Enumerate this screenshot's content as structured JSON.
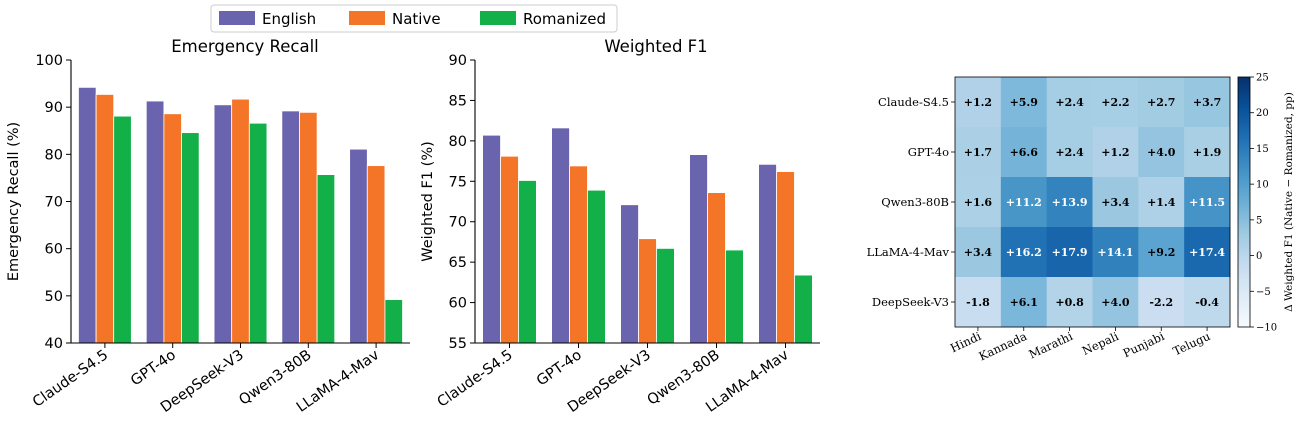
{
  "legend": [
    {
      "label": "English",
      "color": "#6a63ad"
    },
    {
      "label": "Native",
      "color": "#f47528"
    },
    {
      "label": "Romanized",
      "color": "#13b04a"
    }
  ],
  "chart_data": [
    {
      "type": "bar",
      "title": "Emergency Recall",
      "ylabel": "Emergency Recall (%)",
      "ylim": [
        40,
        100
      ],
      "yticks": [
        40,
        50,
        60,
        70,
        80,
        90,
        100
      ],
      "categories": [
        "Claude-S4.5",
        "GPT-4o",
        "DeepSeek-V3",
        "Qwen3-80B",
        "LLaMA-4-Mav"
      ],
      "series": [
        {
          "name": "English",
          "values": [
            94.2,
            91.3,
            90.5,
            89.2,
            81.1
          ]
        },
        {
          "name": "Native",
          "values": [
            92.7,
            88.6,
            91.7,
            88.9,
            77.6
          ]
        },
        {
          "name": "Romanized",
          "values": [
            88.1,
            84.6,
            86.6,
            75.7,
            49.2
          ]
        }
      ]
    },
    {
      "type": "bar",
      "title": "Weighted F1",
      "ylabel": "Weighted F1 (%)",
      "ylim": [
        55,
        90
      ],
      "yticks": [
        55,
        60,
        65,
        70,
        75,
        80,
        85,
        90
      ],
      "categories": [
        "Claude-S4.5",
        "GPT-4o",
        "DeepSeek-V3",
        "Qwen3-80B",
        "LLaMA-4-Mav"
      ],
      "series": [
        {
          "name": "English",
          "values": [
            80.7,
            81.6,
            72.1,
            78.3,
            77.1
          ]
        },
        {
          "name": "Native",
          "values": [
            78.1,
            76.9,
            67.9,
            73.6,
            76.2
          ]
        },
        {
          "name": "Romanized",
          "values": [
            75.1,
            73.9,
            66.7,
            66.5,
            63.4
          ]
        }
      ]
    },
    {
      "type": "heatmap",
      "rows": [
        "Claude-S4.5",
        "GPT-4o",
        "Qwen3-80B",
        "LLaMA-4-Mav",
        "DeepSeek-V3"
      ],
      "columns": [
        "Hindi",
        "Kannada",
        "Marathi",
        "Nepali",
        "Punjabi",
        "Telugu"
      ],
      "values": [
        [
          1.2,
          5.9,
          2.4,
          2.2,
          2.7,
          3.7
        ],
        [
          1.7,
          6.6,
          2.4,
          1.2,
          4.0,
          1.9
        ],
        [
          1.6,
          11.2,
          13.9,
          3.4,
          1.4,
          11.5
        ],
        [
          3.4,
          16.2,
          17.9,
          14.1,
          9.2,
          17.4
        ],
        [
          -1.8,
          6.1,
          0.8,
          4.0,
          -2.2,
          -0.4
        ]
      ],
      "labels": [
        [
          "+1.2",
          "+5.9",
          "+2.4",
          "+2.2",
          "+2.7",
          "+3.7"
        ],
        [
          "+1.7",
          "+6.6",
          "+2.4",
          "+1.2",
          "+4.0",
          "+1.9"
        ],
        [
          "+1.6",
          "+11.2",
          "+13.9",
          "+3.4",
          "+1.4",
          "+11.5"
        ],
        [
          "+3.4",
          "+16.2",
          "+17.9",
          "+14.1",
          "+9.2",
          "+17.4"
        ],
        [
          "-1.8",
          "+6.1",
          "+0.8",
          "+4.0",
          "-2.2",
          "-0.4"
        ]
      ],
      "colorbar": {
        "label": "Δ Weighted F1 (Native − Romanized, pp)",
        "range": [
          -10,
          25
        ],
        "ticks": [
          -10,
          -5,
          0,
          5,
          10,
          15,
          20,
          25
        ],
        "tick_labels": [
          "−10",
          "−5",
          "0",
          "5",
          "10",
          "15",
          "20",
          "25"
        ],
        "colormap": "Blues"
      }
    }
  ]
}
